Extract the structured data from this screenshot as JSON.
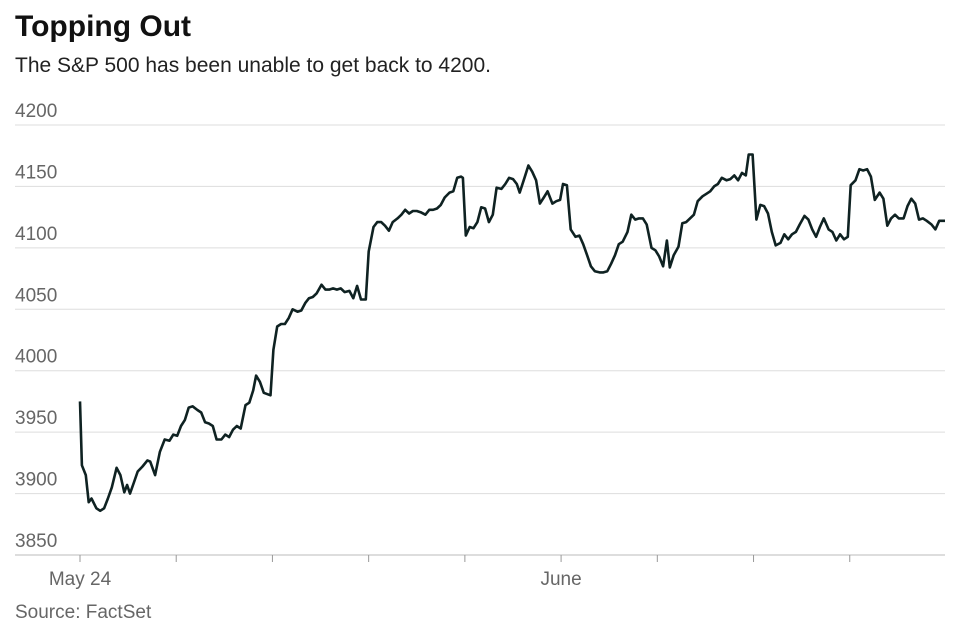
{
  "chart_data": {
    "type": "line",
    "title": "Topping Out",
    "subtitle": "The S&P 500 has been unable to get back to 4200.",
    "source": "Source: FactSet",
    "color": "#0f2222",
    "grid": true,
    "xlim": [
      0,
      8.99
    ],
    "xticks": [
      {
        "value": 0,
        "label": "May 24"
      },
      {
        "value": 1,
        "label": null
      },
      {
        "value": 2,
        "label": null
      },
      {
        "value": 3,
        "label": null
      },
      {
        "value": 4,
        "label": null
      },
      {
        "value": 5,
        "label": "June"
      },
      {
        "value": 6,
        "label": null
      },
      {
        "value": 7,
        "label": null
      },
      {
        "value": 8,
        "label": null
      }
    ],
    "ylim": [
      3850,
      4200
    ],
    "yticks": [
      3850,
      3900,
      3950,
      4000,
      4050,
      4100,
      4150,
      4200
    ],
    "x": [
      0,
      0.02,
      0.06,
      0.09,
      0.12,
      0.17,
      0.21,
      0.25,
      0.29,
      0.33,
      0.38,
      0.42,
      0.46,
      0.49,
      0.52,
      0.56,
      0.6,
      0.65,
      0.7,
      0.73,
      0.78,
      0.83,
      0.88,
      0.93,
      0.97,
      1.01,
      1.05,
      1.09,
      1.13,
      1.17,
      1.22,
      1.26,
      1.3,
      1.34,
      1.38,
      1.42,
      1.47,
      1.51,
      1.55,
      1.59,
      1.63,
      1.67,
      1.72,
      1.76,
      1.8,
      1.83,
      1.87,
      1.91,
      1.98,
      2.01,
      2.05,
      2.09,
      2.13,
      2.17,
      2.21,
      2.26,
      2.3,
      2.34,
      2.38,
      2.42,
      2.46,
      2.51,
      2.55,
      2.59,
      2.63,
      2.67,
      2.71,
      2.75,
      2.8,
      2.84,
      2.88,
      2.92,
      2.97,
      3.0,
      3.05,
      3.09,
      3.13,
      3.17,
      3.21,
      3.25,
      3.3,
      3.34,
      3.38,
      3.42,
      3.46,
      3.5,
      3.54,
      3.59,
      3.63,
      3.67,
      3.71,
      3.75,
      3.79,
      3.84,
      3.88,
      3.92,
      3.96,
      3.98,
      4.01,
      4.05,
      4.09,
      4.13,
      4.17,
      4.21,
      4.25,
      4.29,
      4.33,
      4.38,
      4.42,
      4.46,
      4.5,
      4.54,
      4.57,
      4.62,
      4.66,
      4.7,
      4.74,
      4.78,
      4.82,
      4.86,
      4.91,
      4.95,
      4.99,
      5.02,
      5.06,
      5.1,
      5.15,
      5.19,
      5.23,
      5.27,
      5.31,
      5.35,
      5.4,
      5.44,
      5.48,
      5.52,
      5.56,
      5.6,
      5.64,
      5.69,
      5.73,
      5.77,
      5.81,
      5.85,
      5.89,
      5.94,
      5.98,
      6.02,
      6.06,
      6.1,
      6.13,
      6.17,
      6.22,
      6.26,
      6.3,
      6.34,
      6.38,
      6.42,
      6.47,
      6.51,
      6.55,
      6.59,
      6.63,
      6.67,
      6.72,
      6.76,
      6.8,
      6.84,
      6.88,
      6.92,
      6.95,
      6.99,
      7.03,
      7.07,
      7.11,
      7.15,
      7.19,
      7.23,
      7.28,
      7.32,
      7.36,
      7.4,
      7.44,
      7.48,
      7.53,
      7.57,
      7.61,
      7.65,
      7.69,
      7.73,
      7.78,
      7.82,
      7.86,
      7.9,
      7.94,
      7.98,
      8.01,
      8.06,
      8.1,
      8.14,
      8.18,
      8.22,
      8.26,
      8.31,
      8.35,
      8.39,
      8.43,
      8.47,
      8.51,
      8.56,
      8.6,
      8.64,
      8.68,
      8.72,
      8.76,
      8.8,
      8.85,
      8.89,
      8.93,
      8.99
    ],
    "values": [
      3975,
      3923,
      3915,
      3893,
      3896,
      3888,
      3886,
      3888,
      3896,
      3905,
      3921,
      3915,
      3901,
      3907,
      3900,
      3909,
      3918,
      3922,
      3927,
      3926,
      3915,
      3934,
      3944,
      3943,
      3948,
      3947,
      3955,
      3960,
      3970,
      3971,
      3968,
      3966,
      3958,
      3957,
      3955,
      3944,
      3944,
      3948,
      3946,
      3952,
      3955,
      3953,
      3972,
      3974,
      3984,
      3996,
      3991,
      3982,
      3980,
      4017,
      4036,
      4038,
      4038,
      4043,
      4050,
      4048,
      4049,
      4055,
      4059,
      4060,
      4063,
      4070,
      4066,
      4066,
      4067,
      4066,
      4067,
      4064,
      4065,
      4059,
      4069,
      4058,
      4058,
      4097,
      4117,
      4121,
      4121,
      4118,
      4114,
      4121,
      4124,
      4127,
      4131,
      4128,
      4130,
      4130,
      4129,
      4127,
      4131,
      4131,
      4132,
      4135,
      4141,
      4145,
      4146,
      4157,
      4158,
      4157,
      4110,
      4117,
      4116,
      4121,
      4133,
      4132,
      4121,
      4127,
      4149,
      4148,
      4152,
      4157,
      4156,
      4152,
      4145,
      4157,
      4167,
      4162,
      4155,
      4136,
      4141,
      4146,
      4136,
      4138,
      4139,
      4152,
      4151,
      4115,
      4109,
      4110,
      4103,
      4094,
      4085,
      4081,
      4080,
      4080,
      4081,
      4087,
      4094,
      4103,
      4105,
      4113,
      4127,
      4123,
      4124,
      4124,
      4119,
      4100,
      4098,
      4093,
      4085,
      4106,
      4084,
      4094,
      4101,
      4120,
      4121,
      4124,
      4127,
      4138,
      4142,
      4144,
      4146,
      4150,
      4152,
      4157,
      4155,
      4156,
      4159,
      4155,
      4161,
      4159,
      4176,
      4176,
      4123,
      4135,
      4134,
      4128,
      4113,
      4102,
      4104,
      4111,
      4107,
      4111,
      4113,
      4119,
      4126,
      4123,
      4115,
      4109,
      4117,
      4124,
      4115,
      4113,
      4106,
      4111,
      4107,
      4109,
      4151,
      4155,
      4164,
      4163,
      4164,
      4158,
      4139,
      4145,
      4140,
      4118,
      4124,
      4127,
      4124,
      4124,
      4134,
      4140,
      4136,
      4123,
      4124,
      4122,
      4119,
      4115,
      4122,
      4122
    ]
  }
}
